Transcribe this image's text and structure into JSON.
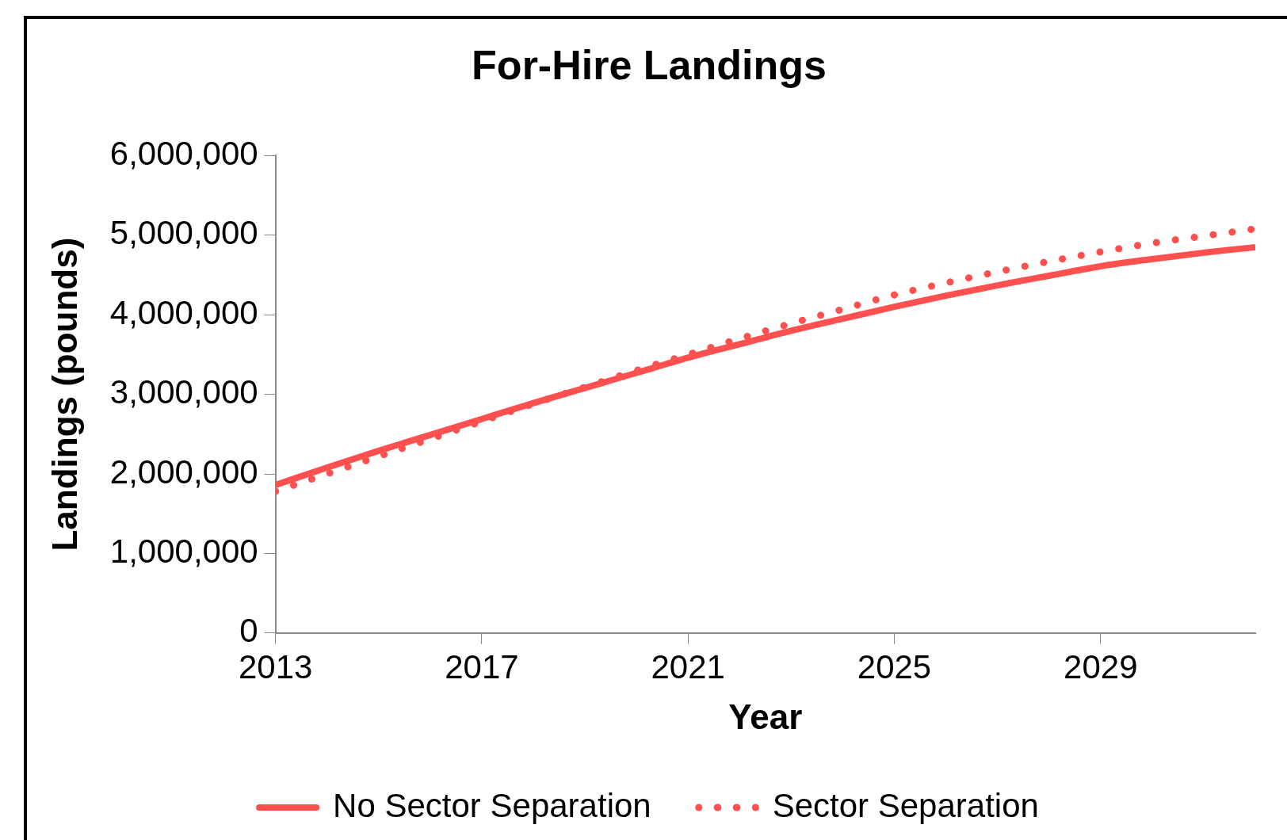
{
  "chart_data": {
    "type": "line",
    "title": "For-Hire Landings",
    "xlabel": "Year",
    "ylabel": "Landings (pounds)",
    "x": [
      2013,
      2014,
      2015,
      2016,
      2017,
      2018,
      2019,
      2020,
      2021,
      2022,
      2023,
      2024,
      2025,
      2026,
      2027,
      2028,
      2029,
      2030,
      2031,
      2032
    ],
    "xlim": [
      2013,
      2032
    ],
    "xticks": [
      2013,
      2017,
      2021,
      2025,
      2029
    ],
    "ylim": [
      0,
      6000000
    ],
    "yticks": [
      {
        "value": 0,
        "label": "0"
      },
      {
        "value": 1000000,
        "label": "1,000,000"
      },
      {
        "value": 2000000,
        "label": "2,000,000"
      },
      {
        "value": 3000000,
        "label": "3,000,000"
      },
      {
        "value": 4000000,
        "label": "4,000,000"
      },
      {
        "value": 5000000,
        "label": "5,000,000"
      },
      {
        "value": 6000000,
        "label": "6,000,000"
      }
    ],
    "grid": false,
    "legend": "bottom",
    "marker": "none",
    "series": [
      {
        "name": "No Sector Separation",
        "color": "#ff5050",
        "line_style": "solid",
        "values": [
          1860000,
          2080000,
          2290000,
          2490000,
          2690000,
          2890000,
          3080000,
          3270000,
          3460000,
          3630000,
          3800000,
          3950000,
          4100000,
          4240000,
          4370000,
          4490000,
          4610000,
          4700000,
          4780000,
          4850000
        ]
      },
      {
        "name": "Sector Separation",
        "color": "#ff5050",
        "line_style": "dotted",
        "values": [
          1780000,
          2000000,
          2220000,
          2440000,
          2660000,
          2880000,
          3090000,
          3300000,
          3500000,
          3700000,
          3890000,
          4070000,
          4250000,
          4400000,
          4540000,
          4670000,
          4790000,
          4900000,
          4990000,
          5080000
        ]
      }
    ]
  }
}
